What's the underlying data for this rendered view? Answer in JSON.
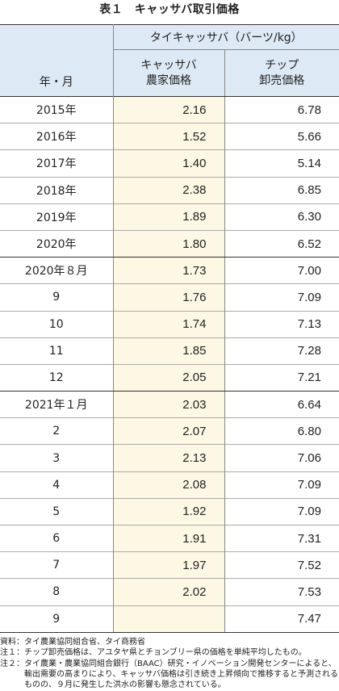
{
  "title": "表１　キャッサバ取引価格",
  "table": {
    "header": {
      "group": "タイキャッサバ（バーツ/kg）",
      "row_label": "年・月",
      "columns": [
        [
          "キャッサバ",
          "農家価格"
        ],
        [
          "チップ",
          "卸売価格"
        ]
      ]
    },
    "groups": [
      [
        [
          "2015年",
          "2.16",
          "6.78"
        ],
        [
          "2016年",
          "1.52",
          "5.66"
        ],
        [
          "2017年",
          "1.40",
          "5.14"
        ],
        [
          "2018年",
          "2.38",
          "6.85"
        ],
        [
          "2019年",
          "1.89",
          "6.30"
        ],
        [
          "2020年",
          "1.80",
          "6.52"
        ]
      ],
      [
        [
          "2020年８月",
          "1.73",
          "7.00"
        ],
        [
          "9",
          "1.76",
          "7.09"
        ],
        [
          "10",
          "1.74",
          "7.13"
        ],
        [
          "11",
          "1.85",
          "7.28"
        ],
        [
          "12",
          "2.05",
          "7.21"
        ]
      ],
      [
        [
          "2021年１月",
          "2.03",
          "6.64"
        ],
        [
          "2",
          "2.07",
          "6.80"
        ],
        [
          "3",
          "2.13",
          "7.06"
        ],
        [
          "4",
          "2.08",
          "7.09"
        ],
        [
          "5",
          "1.92",
          "7.09"
        ],
        [
          "6",
          "1.91",
          "7.31"
        ],
        [
          "7",
          "1.97",
          "7.52"
        ],
        [
          "8",
          "2.02",
          "7.53"
        ],
        [
          "9",
          null,
          "7.47"
        ]
      ]
    ]
  },
  "notes": [
    {
      "label": "資料：",
      "text": "タイ農業協同組合省、タイ商務省"
    },
    {
      "label": "注１：",
      "text": "チップ卸売価格は、アユタヤ県とチョンブリー県の価格を単純平均したもの。"
    },
    {
      "label": "注２：",
      "text": "タイ農業・農業協同組合銀行（BAAC）研究・イノベーション開発センターによると、輸出需要の高まりにより、キャッサバ価格は引き続き上昇傾向で推移すると予測されるものの、９月に発生した洪水の影響も懸念されている。"
    }
  ]
}
